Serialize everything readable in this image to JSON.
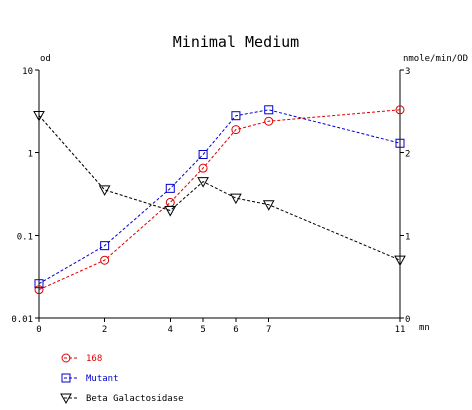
{
  "chart_data": {
    "type": "line",
    "title": "Minimal Medium",
    "y_left_label": "od",
    "y_right_label": "nmole/min/OD",
    "x_unit_label": "mn",
    "x": [
      0,
      2,
      4,
      5,
      6,
      7,
      11
    ],
    "xlim": [
      0,
      11
    ],
    "x_ticks": [
      0,
      2,
      4,
      5,
      6,
      7,
      11
    ],
    "y_left_scale": "log",
    "y_left_lim": [
      0.01,
      10
    ],
    "y_left_ticks": [
      0.01,
      0.1,
      1,
      10
    ],
    "y_left_tick_labels": [
      "0.01",
      "0.1",
      "1",
      "10"
    ],
    "y_right_scale": "linear",
    "y_right_lim": [
      0,
      3
    ],
    "y_right_ticks": [
      0,
      1,
      2,
      3
    ],
    "grid": false,
    "legend_placement": "bottom-left",
    "series": [
      {
        "name": "168",
        "axis": "left",
        "marker": "circle",
        "color": "#dd0000",
        "x": [
          0,
          2,
          4,
          5,
          6,
          7,
          11
        ],
        "values": [
          0.022,
          0.05,
          0.25,
          0.65,
          1.9,
          2.4,
          3.3
        ]
      },
      {
        "name": "Mutant",
        "axis": "left",
        "marker": "square",
        "color": "#0000cc",
        "x": [
          0,
          2,
          4,
          5,
          6,
          7,
          11
        ],
        "values": [
          0.026,
          0.075,
          0.37,
          0.95,
          2.8,
          3.3,
          1.3
        ]
      },
      {
        "name": "Beta Galactosidase",
        "axis": "right",
        "marker": "triangle-down",
        "color": "#000000",
        "x": [
          0,
          2,
          4,
          5,
          6,
          7,
          11
        ],
        "values": [
          2.45,
          1.55,
          1.3,
          1.65,
          1.45,
          1.37,
          0.7
        ]
      }
    ]
  }
}
